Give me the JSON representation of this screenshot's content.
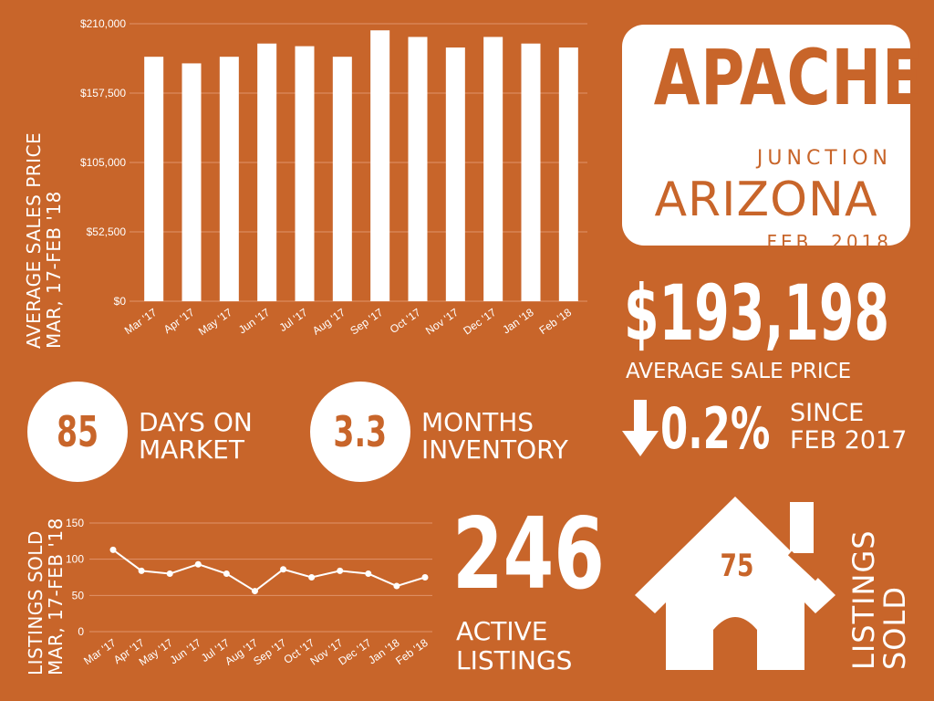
{
  "colors": {
    "background": "#c8652a",
    "foreground": "#ffffff"
  },
  "bar_chart": {
    "title_line1": "AVERAGE SALES PRICE",
    "title_line2": "MAR, 17-FEB '18"
  },
  "title_card": {
    "city": "APACHE",
    "junction": "JUNCTION",
    "state": "ARIZONA",
    "date": "FEB, 2018"
  },
  "stats": {
    "avg_price": "$193,198",
    "avg_price_label": "AVERAGE  SALE PRICE",
    "days_on_market": "85",
    "days_label_line1": "DAYS ON",
    "days_label_line2": "MARKET",
    "months_inventory": "3.3",
    "months_label_line1": "MONTHS",
    "months_label_line2": "INVENTORY",
    "change_pct": "0.2%",
    "change_direction": "down",
    "since_line1": "SINCE",
    "since_line2": "FEB 2017",
    "active_listings": "246",
    "active_label_line1": "ACTIVE",
    "active_label_line2": "LISTINGS",
    "listings_sold": "75",
    "listings_sold_label_line1": "LISTINGS",
    "listings_sold_label_line2": "SOLD"
  },
  "line_chart": {
    "title_line1": "LISTINGS SOLD",
    "title_line2": "MAR, 17-FEB '18"
  },
  "chart_data": [
    {
      "type": "bar",
      "title": "AVERAGE SALES PRICE MAR, 17-FEB '18",
      "categories": [
        "Mar '17",
        "Apr '17",
        "May '17",
        "Jun '17",
        "Jul '17",
        "Aug '17",
        "Sep '17",
        "Oct '17",
        "Nov '17",
        "Dec '17",
        "Jan '18",
        "Feb '18"
      ],
      "values": [
        185000,
        180000,
        185000,
        195000,
        193000,
        185000,
        205000,
        200000,
        192000,
        200000,
        195000,
        192000
      ],
      "yticks": [
        "$0",
        "$52,500",
        "$105,000",
        "$157,500",
        "$210,000"
      ],
      "ylim": [
        0,
        210000
      ],
      "grid": true,
      "color": "#ffffff"
    },
    {
      "type": "line",
      "title": "LISTINGS SOLD MAR, 17-FEB '18",
      "categories": [
        "Mar '17",
        "Apr '17",
        "May '17",
        "Jun '17",
        "Jul '17",
        "Aug '17",
        "Sep '17",
        "Oct '17",
        "Nov '17",
        "Dec '17",
        "Jan '18",
        "Feb '18"
      ],
      "values": [
        113,
        84,
        80,
        93,
        80,
        56,
        86,
        75,
        84,
        80,
        63,
        75
      ],
      "yticks": [
        "0",
        "50",
        "100",
        "150"
      ],
      "ylim": [
        0,
        150
      ],
      "grid": true,
      "color": "#ffffff"
    }
  ]
}
